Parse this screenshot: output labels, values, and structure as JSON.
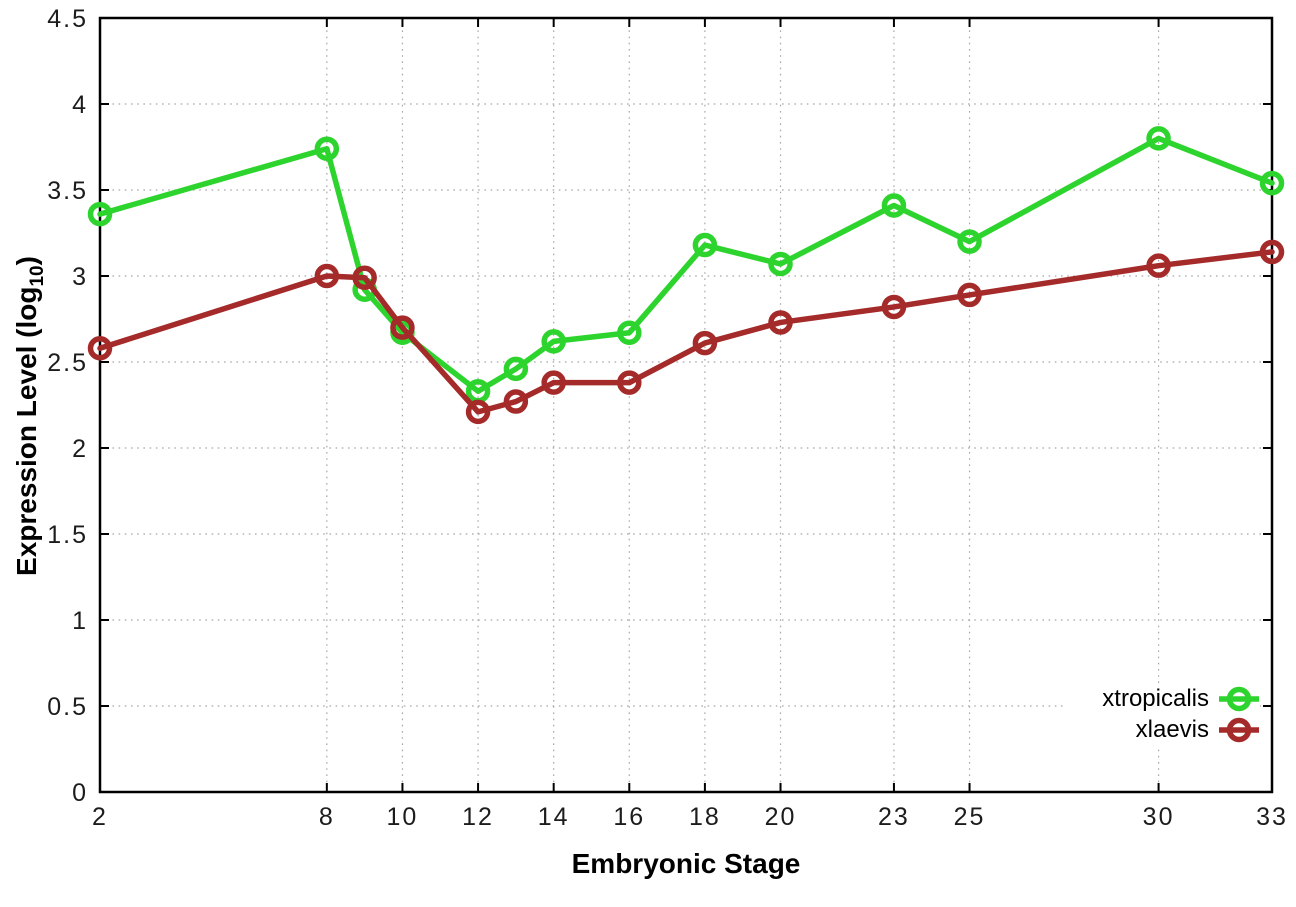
{
  "chart_data": {
    "type": "line",
    "xlabel": "Embryonic Stage",
    "ylabel": "Expression Level (log10)",
    "ylabel_parts": {
      "prefix": "Expression Level (log",
      "sub": "10",
      "suffix": ")"
    },
    "x": [
      2,
      8,
      9,
      10,
      12,
      13,
      14,
      16,
      18,
      20,
      23,
      25,
      30,
      33
    ],
    "series": [
      {
        "name": "xtropicalis",
        "color": "#2dd42d",
        "values": [
          3.36,
          3.74,
          2.92,
          2.67,
          2.33,
          2.46,
          2.62,
          2.67,
          3.18,
          3.07,
          3.41,
          3.2,
          3.8,
          3.54
        ]
      },
      {
        "name": "xlaevis",
        "color": "#a52a2a",
        "values": [
          2.58,
          3.0,
          2.99,
          2.7,
          2.21,
          2.27,
          2.38,
          2.38,
          2.61,
          2.73,
          2.82,
          2.89,
          3.06,
          3.14
        ]
      }
    ],
    "xlim": [
      2,
      33
    ],
    "ylim": [
      0,
      4.5
    ],
    "x_ticks": [
      2,
      8,
      10,
      12,
      14,
      16,
      18,
      20,
      23,
      25,
      30,
      33
    ],
    "x_tick_labels": [
      "2",
      "8",
      "10",
      "12",
      "14",
      "16",
      "18",
      "20",
      "23",
      "25",
      "30",
      "33"
    ],
    "y_ticks": [
      0,
      0.5,
      1,
      1.5,
      2,
      2.5,
      3,
      3.5,
      4,
      4.5
    ],
    "y_tick_labels": [
      "0",
      "0.5",
      "1",
      "1.5",
      "2",
      "2.5",
      "3",
      "3.5",
      "4",
      "4.5"
    ],
    "grid": true,
    "grid_style": "dotted",
    "grid_color": "#a8a8a8",
    "border_color": "#000000",
    "marker": "open-circle",
    "legend_position": "bottom-right"
  }
}
